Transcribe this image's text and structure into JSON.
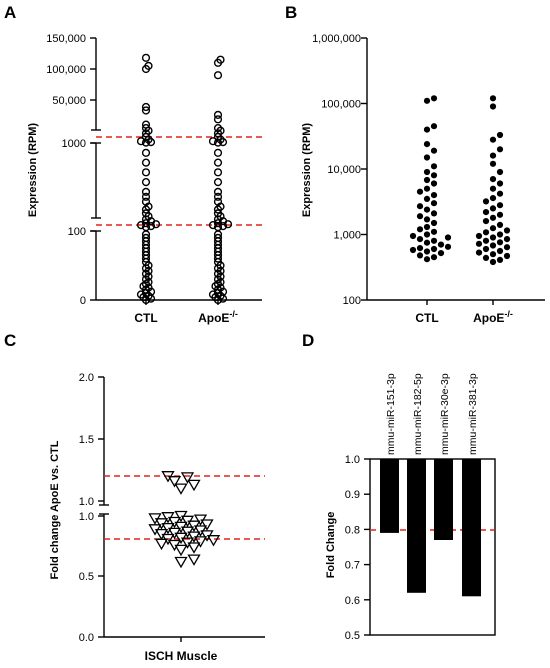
{
  "panels": [
    {
      "label": "A",
      "ylabel": "Expression (RPM)",
      "categories": [
        "CTL",
        "ApoE"
      ],
      "category_superscripts": [
        "",
        "-/-"
      ],
      "y_ticks_top": [
        "150,000",
        "100,000",
        "50,000"
      ],
      "y_ticks_mid": [
        "1000"
      ],
      "y_ticks_bottom": [
        "100",
        "0"
      ],
      "threshold_lines": [
        1200,
        120
      ],
      "marker": "open-circle"
    },
    {
      "label": "B",
      "ylabel": "Expression (RPM)",
      "categories": [
        "CTL",
        "ApoE"
      ],
      "category_superscripts": [
        "",
        "-/-"
      ],
      "y_ticks": [
        "1,000,000",
        "100,000",
        "10,000",
        "1,000",
        "100"
      ],
      "marker": "filled-circle"
    },
    {
      "label": "C",
      "ylabel": "Fold change ApoE vs. CTL",
      "categories": [
        "ISCH Muscle"
      ],
      "y_ticks_top": [
        "2.0",
        "1.5",
        "1.0"
      ],
      "y_ticks_bottom": [
        "1.0",
        "0.5",
        "0.0"
      ],
      "threshold_lines": [
        1.2,
        0.8
      ],
      "marker": "open-down-triangle"
    },
    {
      "label": "D",
      "ylabel": "Fold Change",
      "y_ticks": [
        "1.0",
        "0.9",
        "0.8",
        "0.7",
        "0.6",
        "0.5"
      ],
      "threshold_lines": [
        0.8
      ],
      "marker": "bar"
    }
  ],
  "colors": {
    "threshold": "#e0231c",
    "marks": "#000000"
  },
  "chart_data": [
    {
      "panel": "A",
      "type": "scatter",
      "y_scale": "segmented (0-100, 100-1000, 1000-150,000)",
      "series": [
        {
          "category": "CTL",
          "values": [
            0,
            2,
            4,
            6,
            8,
            10,
            12,
            15,
            18,
            20,
            23,
            26,
            30,
            34,
            38,
            42,
            46,
            50,
            55,
            60,
            65,
            70,
            75,
            80,
            85,
            90,
            95,
            140,
            150,
            160,
            170,
            180,
            200,
            220,
            250,
            280,
            320,
            350,
            400,
            450,
            500,
            600,
            700,
            800,
            900,
            1500,
            2000,
            3000,
            5000,
            8000,
            12000,
            15000,
            18000,
            22000,
            38000,
            42000,
            100000,
            105000,
            118000
          ]
        },
        {
          "category": "ApoE",
          "values": [
            0,
            2,
            4,
            6,
            8,
            10,
            12,
            15,
            18,
            20,
            23,
            26,
            30,
            34,
            38,
            42,
            46,
            50,
            55,
            60,
            65,
            70,
            75,
            80,
            85,
            90,
            95,
            140,
            150,
            160,
            170,
            180,
            200,
            220,
            250,
            280,
            320,
            350,
            400,
            450,
            500,
            600,
            700,
            800,
            900,
            1500,
            2000,
            3000,
            5000,
            8000,
            12000,
            15000,
            18000,
            28000,
            33000,
            90000,
            110000,
            115000
          ]
        }
      ]
    },
    {
      "panel": "B",
      "type": "scatter",
      "y_scale": "log",
      "ylim": [
        100,
        1000000
      ],
      "series": [
        {
          "category": "CTL",
          "values": [
            420,
            450,
            480,
            520,
            550,
            580,
            600,
            620,
            650,
            700,
            750,
            800,
            850,
            900,
            950,
            1000,
            1100,
            1200,
            1300,
            1500,
            1700,
            1900,
            2100,
            2400,
            2700,
            3000,
            3500,
            4000,
            4500,
            5000,
            6000,
            6800,
            8000,
            9000,
            11000,
            15000,
            19000,
            24000,
            40000,
            45000,
            110000,
            120000
          ]
        },
        {
          "category": "ApoE",
          "values": [
            380,
            410,
            440,
            470,
            500,
            530,
            560,
            600,
            640,
            680,
            720,
            760,
            800,
            850,
            900,
            950,
            1000,
            1080,
            1150,
            1250,
            1400,
            1600,
            1800,
            2000,
            2200,
            2500,
            2800,
            3200,
            3600,
            4200,
            5000,
            6000,
            7000,
            9000,
            12000,
            16000,
            20000,
            28000,
            33000,
            90000,
            120000
          ]
        }
      ]
    },
    {
      "panel": "C",
      "type": "scatter",
      "ylim": [
        0,
        2.0
      ],
      "y_break": [
        1.0,
        1.0
      ],
      "series": [
        {
          "category": "ISCH Muscle",
          "values": [
            0.62,
            0.64,
            0.72,
            0.74,
            0.76,
            0.77,
            0.78,
            0.79,
            0.8,
            0.81,
            0.82,
            0.83,
            0.84,
            0.85,
            0.86,
            0.87,
            0.88,
            0.89,
            0.9,
            0.91,
            0.92,
            0.93,
            0.94,
            0.95,
            0.96,
            0.97,
            0.98,
            0.99,
            1.0,
            1.1,
            1.13,
            1.16,
            1.19,
            1.2
          ]
        }
      ]
    },
    {
      "panel": "D",
      "type": "bar",
      "categories": [
        "mmu-miR-151-3p",
        "mmu-miR-182-5p",
        "mmu-miR-30e-3p",
        "mmu-miR-381-3p"
      ],
      "values": [
        0.79,
        0.62,
        0.77,
        0.61
      ],
      "ylim": [
        0.5,
        1.0
      ],
      "bar_direction": "hanging from 1.0"
    }
  ]
}
